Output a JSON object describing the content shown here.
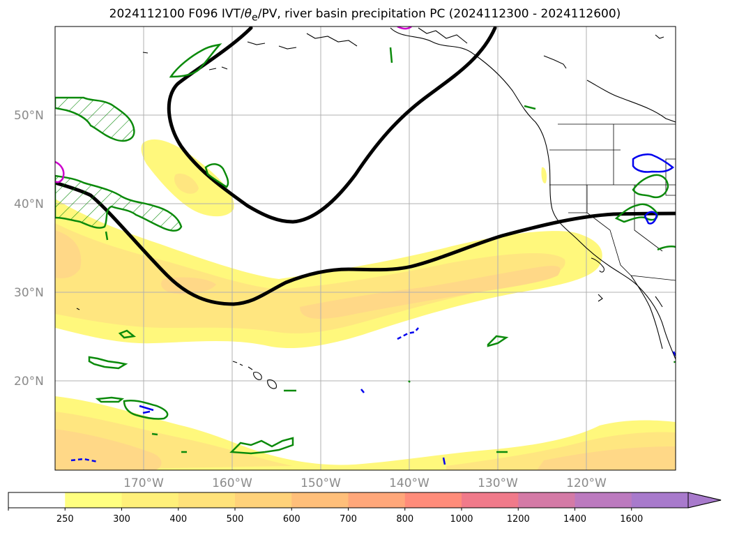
{
  "title": {
    "prefix": "2024112100 F096 IVT/",
    "theta": "θ",
    "sub": "e",
    "suffix": "/PV, river basin precipitation PC (2024112300 - 2024112600)"
  },
  "map": {
    "lat_labels": [
      "50°N",
      "40°N",
      "30°N",
      "20°N"
    ],
    "lon_labels": [
      "170°W",
      "160°W",
      "150°W",
      "140°W",
      "130°W",
      "120°W"
    ],
    "gridlines": true
  },
  "colorbar": {
    "levels": [
      "250",
      "300",
      "400",
      "500",
      "600",
      "700",
      "800",
      "1000",
      "1200",
      "1400",
      "1600"
    ],
    "colors": [
      "#ffffff",
      "#ffff80",
      "#fff07a",
      "#ffe27a",
      "#ffd27a",
      "#ffbf7a",
      "#ffa77a",
      "#ff8c7a",
      "#f07a8a",
      "#d47aa6",
      "#bc7abf",
      "#a87acc"
    ],
    "extend": "max"
  },
  "colors": {
    "ivt_light": "#fff87c",
    "ivt_mid": "#ffe680",
    "ivt_core": "#ffd887",
    "pv_contour": "#000000",
    "green_contour": "#0b8a0b",
    "blue_contour": "#0000ee",
    "magenta_contour": "#cc00cc"
  }
}
